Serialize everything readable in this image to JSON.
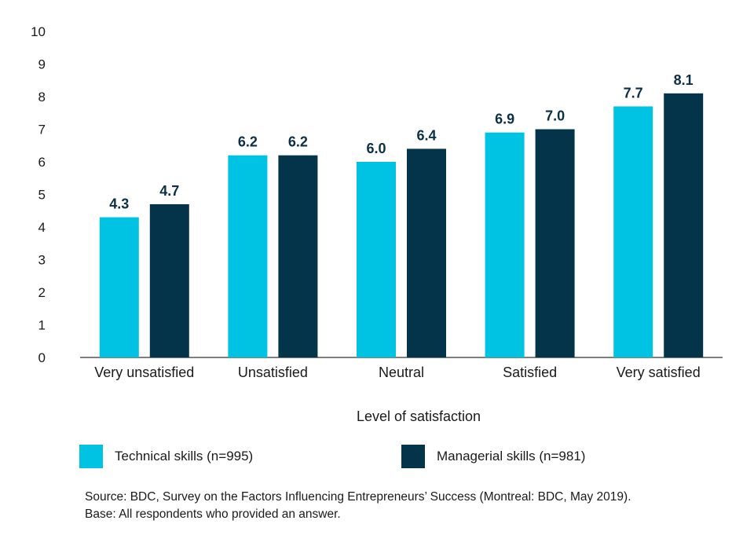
{
  "chart_data": {
    "type": "bar",
    "xlabel": "Level of satisfaction",
    "ylabel": "",
    "ylim": [
      0,
      10
    ],
    "yticks": [
      "0",
      "1",
      "2",
      "3",
      "4",
      "5",
      "6",
      "7",
      "8",
      "9",
      "10"
    ],
    "categories": [
      "Very unsatisfied",
      "Unsatisfied",
      "Neutral",
      "Satisfied",
      "Very satisfied"
    ],
    "series": [
      {
        "name": "Technical skills (n=995)",
        "color": "#00c3e3",
        "values": [
          4.3,
          6.2,
          6.0,
          6.9,
          7.7
        ],
        "labels": [
          "4.3",
          "6.2",
          "6.0",
          "6.9",
          "7.7"
        ]
      },
      {
        "name": "Managerial skills (n=981)",
        "color": "#04344a",
        "values": [
          4.7,
          6.2,
          6.4,
          7.0,
          8.1
        ],
        "labels": [
          "4.7",
          "6.2",
          "6.4",
          "7.0",
          "8.1"
        ]
      }
    ],
    "grid": false,
    "legend_position": "bottom"
  },
  "legend": {
    "technical_label": "Technical skills (n=995)",
    "managerial_label": "Managerial skills (n=981)"
  },
  "footer": {
    "source": "Source: BDC, Survey on the Factors Influencing Entrepreneurs’ Success (Montreal: BDC, May 2019).",
    "base": "Base: All respondents who provided an answer."
  }
}
